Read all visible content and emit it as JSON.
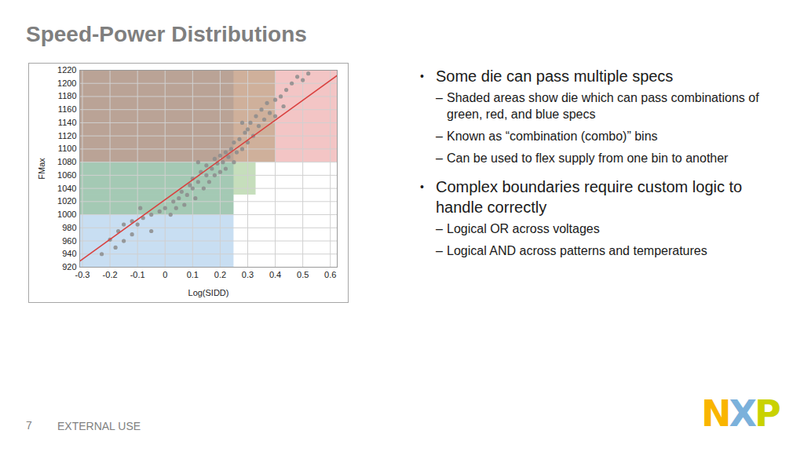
{
  "title": "Speed-Power Distributions",
  "bullets": [
    {
      "text": "Some die can pass multiple specs",
      "sub": [
        "Shaded areas show die which can pass combinations of green, red, and blue specs",
        "Known as “combination (combo)” bins",
        "Can be used to flex supply from one bin to another"
      ]
    },
    {
      "text": "Complex boundaries require custom logic to handle correctly",
      "sub": [
        "Logical OR across voltages",
        "Logical AND across patterns and temperatures"
      ]
    }
  ],
  "footer": {
    "page": 7,
    "label": "EXTERNAL USE"
  },
  "logo": "NXP",
  "chart_data": {
    "type": "scatter",
    "xlabel": "Log(SIDD)",
    "ylabel": "FMax",
    "xlim": [
      -0.31,
      0.625
    ],
    "ylim": [
      920,
      1220
    ],
    "xticks": [
      -0.3,
      -0.2,
      -0.1,
      0,
      0.1,
      0.2,
      0.3,
      0.4,
      0.5,
      0.6
    ],
    "yticks": [
      920,
      940,
      960,
      980,
      1000,
      1020,
      1040,
      1060,
      1080,
      1100,
      1120,
      1140,
      1160,
      1180,
      1200,
      1220
    ],
    "grid": true,
    "color": "#8c8c8c",
    "marker": "circle",
    "x": [
      -0.2,
      -0.17,
      -0.15,
      -0.18,
      -0.12,
      -0.1,
      -0.08,
      -0.05,
      -0.12,
      -0.05,
      -0.02,
      0,
      0.02,
      0.03,
      0.05,
      0.04,
      0.06,
      0.07,
      0.08,
      0.09,
      0.1,
      0.1,
      0.11,
      0.12,
      0.13,
      0.14,
      0.15,
      0.15,
      0.16,
      0.17,
      0.18,
      0.18,
      0.19,
      0.2,
      0.2,
      0.21,
      0.22,
      0.22,
      0.23,
      0.24,
      0.25,
      0.25,
      0.26,
      0.27,
      0.28,
      0.29,
      0.3,
      0.3,
      0.31,
      0.32,
      0.33,
      0.34,
      0.35,
      0.36,
      0.37,
      0.38,
      0.4,
      0.42,
      0.44,
      0.46,
      0.48,
      0.5,
      0.52,
      -0.23,
      -0.09,
      0.12,
      0.28,
      0.4,
      0.43,
      -0.15
    ],
    "values": [
      962,
      975,
      985,
      950,
      970,
      985,
      995,
      975,
      990,
      1000,
      1005,
      1010,
      1000,
      1020,
      1025,
      1010,
      1035,
      1015,
      1030,
      1045,
      1040,
      1055,
      1025,
      1050,
      1065,
      1040,
      1060,
      1075,
      1050,
      1070,
      1085,
      1060,
      1078,
      1090,
      1065,
      1080,
      1095,
      1070,
      1088,
      1100,
      1080,
      1110,
      1095,
      1115,
      1100,
      1125,
      1110,
      1130,
      1140,
      1120,
      1150,
      1135,
      1160,
      1145,
      1170,
      1155,
      1175,
      1180,
      1190,
      1200,
      1210,
      1205,
      1215,
      940,
      1010,
      1080,
      1140,
      1150,
      1165,
      960
    ],
    "shaded_areas": [
      {
        "x1": -0.31,
        "x2": 0.25,
        "y1": 920,
        "y2": 1220,
        "color": "#6fa8dc"
      },
      {
        "x1": -0.31,
        "x2": 0.25,
        "y1": 1000,
        "y2": 1030,
        "color": "#6aa84f"
      },
      {
        "x1": -0.31,
        "x2": 0.33,
        "y1": 1030,
        "y2": 1080,
        "color": "#6aa84f"
      },
      {
        "x1": -0.31,
        "x2": 0.4,
        "y1": 1080,
        "y2": 1220,
        "color": "#6aa84f"
      },
      {
        "x1": -0.31,
        "x2": 0.625,
        "y1": 1080,
        "y2": 1220,
        "color": "#e06666"
      }
    ],
    "trend_line": {
      "x": [
        -0.31,
        0.625
      ],
      "y": [
        929,
        1212
      ],
      "color": "#d9413f"
    }
  }
}
